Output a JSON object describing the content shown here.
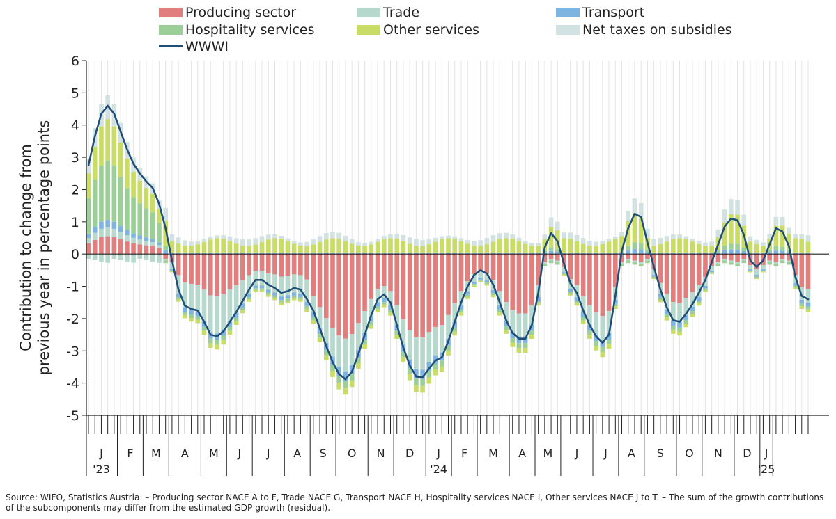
{
  "chart_data": {
    "type": "bar",
    "subtype": "stacked-bar-with-line",
    "ylabel": "Contribution to change from previous year in percentage points",
    "ylim": [
      -5,
      6
    ],
    "yticks": [
      "6",
      "5",
      "4",
      "3",
      "2",
      "1",
      "0",
      "-1",
      "-2",
      "-3",
      "-4",
      "-5"
    ],
    "grid": "vertical",
    "legend_position": "top",
    "weeks_per_month": [
      5,
      4,
      4,
      5,
      4,
      4,
      5,
      4,
      4,
      5,
      4,
      5,
      4,
      4,
      5,
      4,
      4,
      5,
      4,
      4,
      5,
      4,
      5,
      4,
      2
    ],
    "month_labels": [
      "J",
      "F",
      "M",
      "A",
      "M",
      "J",
      "J",
      "A",
      "S",
      "O",
      "N",
      "D",
      "J",
      "F",
      "M",
      "A",
      "M",
      "J",
      "J",
      "A",
      "S",
      "O",
      "N",
      "D",
      "J"
    ],
    "year_labels": [
      {
        "month_index": 0,
        "label": "'23"
      },
      {
        "month_index": 12,
        "label": "'24"
      },
      {
        "month_index": 24,
        "label": "'25"
      }
    ],
    "series": [
      {
        "name": "Producing sector",
        "color": "#e17f7f",
        "key": "p"
      },
      {
        "name": "Trade",
        "color": "#b6d8cd",
        "key": "t"
      },
      {
        "name": "Transport",
        "color": "#7fb3e0",
        "key": "tr"
      },
      {
        "name": "Hospitality services",
        "color": "#9ccf98",
        "key": "h"
      },
      {
        "name": "Other services",
        "color": "#c8dc66",
        "key": "o"
      },
      {
        "name": "Net taxes on subsidies",
        "color": "#d2e2e2",
        "key": "n"
      }
    ],
    "line": {
      "name": "WWWI",
      "color": "#1f4e79",
      "values": [
        2.75,
        3.65,
        4.35,
        4.6,
        4.35,
        3.8,
        3.25,
        2.8,
        2.5,
        2.25,
        2.05,
        1.55,
        0.8,
        -0.2,
        -1.1,
        -1.6,
        -1.7,
        -1.75,
        -2.1,
        -2.5,
        -2.55,
        -2.4,
        -2.1,
        -1.8,
        -1.45,
        -1.1,
        -0.8,
        -0.8,
        -0.95,
        -1.05,
        -1.2,
        -1.15,
        -1.05,
        -1.1,
        -1.4,
        -1.75,
        -2.3,
        -2.85,
        -3.35,
        -3.72,
        -3.88,
        -3.65,
        -3.1,
        -2.5,
        -1.9,
        -1.4,
        -1.25,
        -1.5,
        -2.2,
        -2.9,
        -3.45,
        -3.8,
        -3.82,
        -3.55,
        -3.3,
        -3.2,
        -2.7,
        -2.1,
        -1.5,
        -1.0,
        -0.65,
        -0.5,
        -0.6,
        -0.95,
        -1.5,
        -2.05,
        -2.45,
        -2.62,
        -2.62,
        -2.2,
        -1.2,
        0.2,
        0.65,
        0.4,
        -0.3,
        -0.9,
        -1.2,
        -1.75,
        -2.2,
        -2.55,
        -2.75,
        -2.5,
        -1.3,
        0.1,
        0.8,
        1.25,
        1.15,
        0.35,
        -0.4,
        -1.1,
        -1.65,
        -2.05,
        -2.1,
        -1.85,
        -1.55,
        -1.2,
        -0.8,
        -0.25,
        0.3,
        0.85,
        1.1,
        1.05,
        0.6,
        -0.2,
        -0.4,
        -0.2,
        0.3,
        0.8,
        0.7,
        0.25,
        -0.7,
        -1.3,
        -1.4
      ]
    }
  },
  "legend": {
    "producing_sector": "Producing sector",
    "trade": "Trade",
    "transport": "Transport",
    "hospitality_services": "Hospitality services",
    "other_services": "Other services",
    "net_taxes": "Net taxes on subsidies",
    "wwwi": "WWWI"
  },
  "ylabel_line1": "Contribution to change from",
  "ylabel_line2": "previous year in percentage points",
  "source_note": "Source: WIFO, Statistics Austria. – Producing sector NACE A to F, Trade NACE G, Transport NACE H, Hospitality services NACE I, Other services NACE J to T. – The sum of the growth contributions of the subcomponents may differ from the estimated GDP growth (residual)."
}
